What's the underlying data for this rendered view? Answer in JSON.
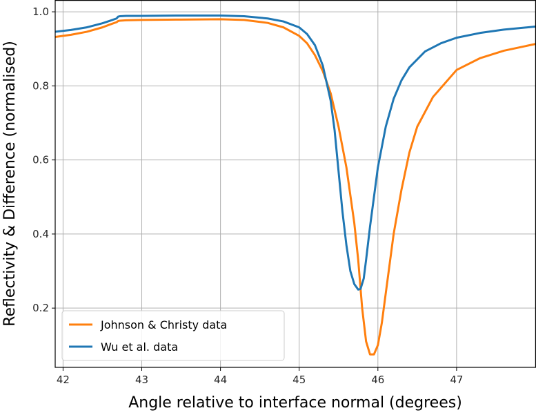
{
  "chart_data": {
    "type": "line",
    "title": "",
    "xlabel": "Angle relative to interface normal (degrees)",
    "ylabel": "Reflectivity & Difference (normalised)",
    "xlim": [
      41.9,
      48.0
    ],
    "ylim": [
      0.04,
      1.03
    ],
    "grid": true,
    "legend_position": "lower-left",
    "x_ticks": [
      42,
      43,
      44,
      45,
      46,
      47
    ],
    "y_ticks": [
      0.2,
      0.4,
      0.6,
      0.8,
      1.0
    ],
    "x_tick_labels": [
      "42",
      "43",
      "44",
      "45",
      "46",
      "47"
    ],
    "y_tick_labels": [
      "0.2",
      "0.4",
      "0.6",
      "0.8",
      "1.0"
    ],
    "series": [
      {
        "name": "Wu et al. data",
        "color": "#1f77b4",
        "x": [
          41.9,
          42.1,
          42.3,
          42.5,
          42.6,
          42.68,
          42.7,
          42.72,
          42.8,
          43.0,
          43.5,
          44.0,
          44.3,
          44.6,
          44.8,
          45.0,
          45.1,
          45.2,
          45.3,
          45.4,
          45.45,
          45.5,
          45.55,
          45.6,
          45.65,
          45.7,
          45.75,
          45.78,
          45.82,
          45.85,
          45.9,
          45.95,
          46.0,
          46.1,
          46.2,
          46.3,
          46.4,
          46.6,
          46.8,
          47.0,
          47.3,
          47.6,
          48.0
        ],
        "y": [
          0.946,
          0.951,
          0.958,
          0.969,
          0.976,
          0.982,
          0.987,
          0.988,
          0.989,
          0.989,
          0.99,
          0.99,
          0.988,
          0.982,
          0.974,
          0.958,
          0.94,
          0.91,
          0.855,
          0.76,
          0.68,
          0.57,
          0.46,
          0.37,
          0.3,
          0.265,
          0.25,
          0.252,
          0.28,
          0.33,
          0.42,
          0.5,
          0.58,
          0.69,
          0.765,
          0.815,
          0.85,
          0.893,
          0.915,
          0.93,
          0.943,
          0.952,
          0.96
        ]
      },
      {
        "name": "Johnson & Christy data",
        "color": "#ff7f0e",
        "x": [
          41.9,
          42.1,
          42.3,
          42.5,
          42.6,
          42.68,
          42.7,
          42.72,
          42.8,
          43.0,
          43.5,
          44.0,
          44.3,
          44.6,
          44.8,
          45.0,
          45.1,
          45.2,
          45.3,
          45.4,
          45.5,
          45.6,
          45.7,
          45.75,
          45.8,
          45.85,
          45.9,
          45.95,
          46.0,
          46.05,
          46.1,
          46.2,
          46.3,
          46.4,
          46.5,
          46.7,
          47.0,
          47.3,
          47.6,
          48.0
        ],
        "y": [
          0.932,
          0.938,
          0.946,
          0.958,
          0.966,
          0.972,
          0.975,
          0.976,
          0.977,
          0.978,
          0.979,
          0.98,
          0.978,
          0.97,
          0.958,
          0.935,
          0.915,
          0.883,
          0.84,
          0.78,
          0.69,
          0.58,
          0.43,
          0.33,
          0.2,
          0.11,
          0.075,
          0.075,
          0.1,
          0.16,
          0.24,
          0.4,
          0.52,
          0.62,
          0.69,
          0.77,
          0.843,
          0.875,
          0.895,
          0.913
        ]
      }
    ],
    "legend": [
      {
        "name": "Johnson & Christy data",
        "color": "#ff7f0e"
      },
      {
        "name": "Wu et al. data",
        "color": "#1f77b4"
      }
    ]
  }
}
